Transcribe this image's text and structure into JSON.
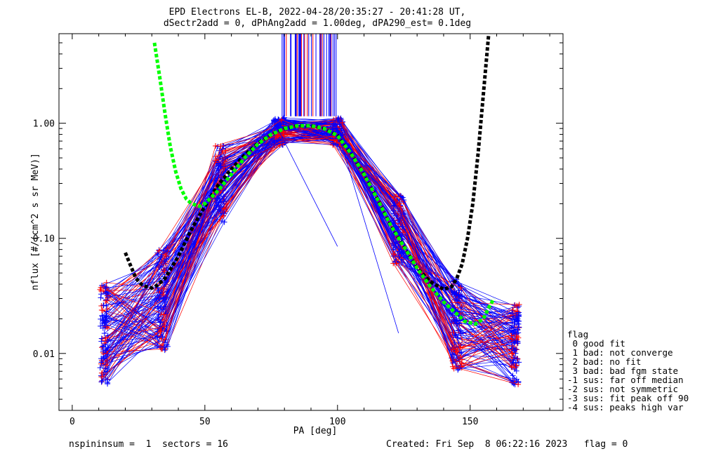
{
  "chart_data": {
    "type": "line",
    "title": "EPD Electrons EL-B, 2022-04-28/20:35:27 - 20:41:28 UT,",
    "subtitle": "dSectr2add = 0, dPhAng2add = 1.00deg, dPA290_est=   0.1deg",
    "xlabel": "PA [deg]",
    "ylabel": "nflux [#/(cm^2 s sr MeV)]",
    "x_range": [
      -5,
      185
    ],
    "y_range": [
      0.0032,
      6.0
    ],
    "y_scale": "log",
    "x_ticks": [
      "0",
      "50",
      "100",
      "150"
    ],
    "x_tick_values": [
      0,
      50,
      100,
      150
    ],
    "y_ticks": [
      "0.01",
      "0.10",
      "1.00"
    ],
    "y_tick_values": [
      0.01,
      0.1,
      1.0
    ],
    "series_colors": {
      "blue": "#0000ff",
      "red": "#ff0000",
      "green": "#00ff00",
      "black": "#000000"
    },
    "pa_bins": [
      12,
      34,
      56,
      78,
      100,
      123,
      145,
      167
    ],
    "typical_profile": [
      0.015,
      0.03,
      0.3,
      0.85,
      0.85,
      0.12,
      0.018,
      0.012
    ],
    "green_fit": {
      "x": [
        31,
        33,
        35,
        37,
        39,
        41,
        43,
        45,
        48,
        50,
        55,
        60,
        65,
        70,
        75,
        80,
        85,
        90,
        95,
        100,
        105,
        110,
        115,
        120,
        125,
        130,
        135,
        140,
        145,
        148,
        152,
        155,
        157,
        159
      ],
      "y": [
        5.0,
        2.5,
        1.2,
        0.62,
        0.38,
        0.27,
        0.22,
        0.2,
        0.19,
        0.2,
        0.26,
        0.36,
        0.5,
        0.66,
        0.8,
        0.9,
        0.95,
        0.95,
        0.9,
        0.78,
        0.55,
        0.36,
        0.22,
        0.13,
        0.085,
        0.055,
        0.038,
        0.028,
        0.022,
        0.019,
        0.018,
        0.02,
        0.025,
        0.03
      ]
    },
    "black_fit": {
      "x": [
        20,
        22,
        24,
        26,
        28,
        30,
        32,
        35,
        40,
        45,
        50,
        55,
        60,
        65,
        70,
        75,
        80,
        85,
        90,
        95,
        100,
        105,
        110,
        115,
        120,
        125,
        130,
        135,
        140,
        143,
        145,
        147,
        149,
        151,
        153,
        155,
        157
      ],
      "y": [
        0.075,
        0.058,
        0.045,
        0.04,
        0.038,
        0.037,
        0.039,
        0.045,
        0.07,
        0.12,
        0.19,
        0.29,
        0.4,
        0.53,
        0.67,
        0.8,
        0.9,
        0.95,
        0.95,
        0.9,
        0.78,
        0.55,
        0.36,
        0.22,
        0.13,
        0.085,
        0.055,
        0.042,
        0.036,
        0.038,
        0.045,
        0.06,
        0.1,
        0.2,
        0.55,
        1.8,
        6.0
      ]
    }
  },
  "legend": {
    "title": "flag",
    "items": [
      " 0 good fit",
      " 1 bad: not converge",
      " 2 bad: no fit",
      " 3 bad: bad fgm state",
      "-1 sus: far off median",
      "-2 sus: not symmetric",
      "-3 sus: fit peak off 90",
      "-4 sus: peaks high var"
    ]
  },
  "footer": {
    "left": "nspininsum =  1  sectors = 16",
    "right": "Created: Fri Sep  8 06:22:16 2023   flag = 0"
  }
}
